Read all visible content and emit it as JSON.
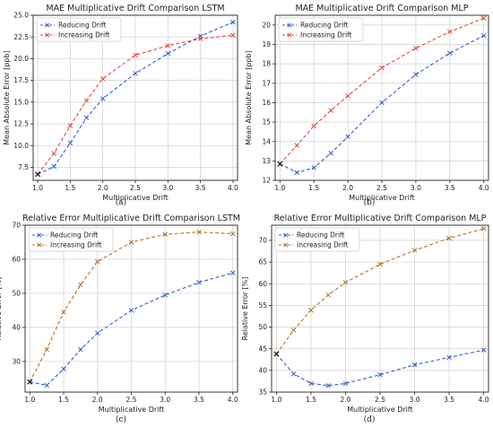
{
  "chart_data": [
    {
      "type": "line",
      "title": "MAE Multiplicative Drift Comparison LSTM",
      "xlabel": "Multiplicative Drift",
      "ylabel": "Mean Absolute Error [ppb]",
      "caption": "(a)",
      "x": [
        1.0,
        1.25,
        1.5,
        1.75,
        2.0,
        2.5,
        3.0,
        3.5,
        4.0
      ],
      "xlim": [
        0.93,
        4.07
      ],
      "ylim": [
        6.0,
        25.0
      ],
      "xticks": [
        "1.0",
        "1.5",
        "2.0",
        "2.5",
        "3.0",
        "3.5",
        "4.0"
      ],
      "yticks": [
        "7.5",
        "10.0",
        "12.5",
        "15.0",
        "17.5",
        "20.0",
        "22.5",
        "25.0"
      ],
      "grid": true,
      "legend_position": "top-left",
      "series": [
        {
          "name": "Reducing Drift",
          "color": "#3a5fcd",
          "values": [
            6.7,
            7.6,
            10.3,
            13.2,
            15.4,
            18.3,
            20.6,
            22.6,
            24.2
          ]
        },
        {
          "name": "Increasing Drift",
          "color": "#e8483f",
          "values": [
            6.7,
            9.1,
            12.3,
            15.2,
            17.7,
            20.4,
            21.5,
            22.3,
            22.7
          ]
        }
      ],
      "start_point": [
        1.0,
        6.7
      ]
    },
    {
      "type": "line",
      "title": "MAE Multiplicative Drift Comparison MLP",
      "xlabel": "Multiplicative Drift",
      "ylabel": "Mean Absolute Error [ppb]",
      "caption": "(b)",
      "x": [
        1.0,
        1.25,
        1.5,
        1.75,
        2.0,
        2.5,
        3.0,
        3.5,
        4.0
      ],
      "xlim": [
        0.93,
        4.07
      ],
      "ylim": [
        12.0,
        20.5
      ],
      "xticks": [
        "1.0",
        "1.5",
        "2.0",
        "2.5",
        "3.0",
        "3.5",
        "4.0"
      ],
      "yticks": [
        "12",
        "13",
        "14",
        "15",
        "16",
        "17",
        "18",
        "19",
        "20"
      ],
      "grid": true,
      "legend_position": "top-left",
      "series": [
        {
          "name": "Reducing Drift",
          "color": "#3a5fcd",
          "values": [
            12.85,
            12.4,
            12.65,
            13.4,
            14.25,
            16.0,
            17.45,
            18.55,
            19.45
          ]
        },
        {
          "name": "Increasing Drift",
          "color": "#e8483f",
          "values": [
            12.85,
            13.8,
            14.8,
            15.6,
            16.35,
            17.8,
            18.8,
            19.65,
            20.35
          ]
        }
      ],
      "start_point": [
        1.0,
        12.85
      ]
    },
    {
      "type": "line",
      "title": "Relative Error Multiplicative Drift Comparison LSTM",
      "xlabel": "Multiplicative Drift",
      "ylabel": "Relative Error [%]",
      "caption": "(c)",
      "x": [
        1.0,
        1.25,
        1.5,
        1.75,
        2.0,
        2.5,
        3.0,
        3.5,
        4.0
      ],
      "xlim": [
        0.93,
        4.07
      ],
      "ylim": [
        21.0,
        70.0
      ],
      "xticks": [
        "1.0",
        "1.5",
        "2.0",
        "2.5",
        "3.0",
        "3.5",
        "4.0"
      ],
      "yticks": [
        "30",
        "40",
        "50",
        "60",
        "70"
      ],
      "grid": true,
      "legend_position": "top-left",
      "series": [
        {
          "name": "Reducing Drift",
          "color": "#3a5fcd",
          "values": [
            24.0,
            23.0,
            27.8,
            33.5,
            38.3,
            45.0,
            49.5,
            53.2,
            56.0
          ]
        },
        {
          "name": "Increasing Drift",
          "color": "#b8742a",
          "values": [
            24.0,
            33.5,
            44.5,
            52.5,
            59.3,
            65.0,
            67.3,
            68.0,
            67.5
          ]
        }
      ],
      "start_point": [
        1.0,
        24.0
      ]
    },
    {
      "type": "line",
      "title": "Relative Error Multiplicative Drift Comparison MLP",
      "xlabel": "Multiplicative Drift",
      "ylabel": "Relative Error [%]",
      "caption": "(d)",
      "x": [
        1.0,
        1.25,
        1.5,
        1.75,
        2.0,
        2.5,
        3.0,
        3.5,
        4.0
      ],
      "xlim": [
        0.93,
        4.07
      ],
      "ylim": [
        35.0,
        73.5
      ],
      "xticks": [
        "1.0",
        "1.5",
        "2.0",
        "2.5",
        "3.0",
        "3.5",
        "4.0"
      ],
      "yticks": [
        "35",
        "40",
        "45",
        "50",
        "55",
        "60",
        "65",
        "70"
      ],
      "grid": true,
      "legend_position": "top-left",
      "series": [
        {
          "name": "Reducing Drift",
          "color": "#3a5fcd",
          "values": [
            43.8,
            39.2,
            37.0,
            36.5,
            37.0,
            39.0,
            41.3,
            43.0,
            44.7
          ]
        },
        {
          "name": "Increasing Drift",
          "color": "#b8742a",
          "values": [
            43.8,
            49.3,
            53.9,
            57.4,
            60.3,
            64.5,
            67.7,
            70.5,
            72.7
          ]
        }
      ],
      "start_point": [
        1.0,
        43.8
      ]
    }
  ]
}
